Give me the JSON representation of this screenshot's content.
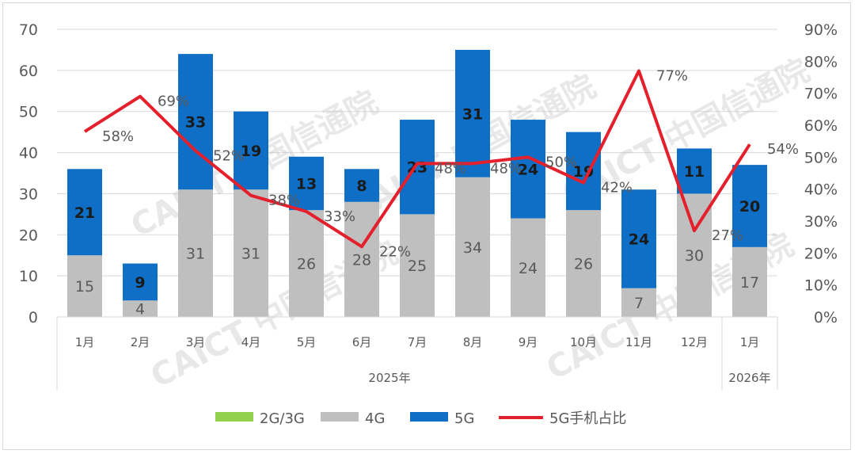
{
  "watermark": "CAICT 中国信通院",
  "chart_data": {
    "type": "bar+line",
    "categories": [
      "1月",
      "2月",
      "3月",
      "4月",
      "5月",
      "6月",
      "7月",
      "8月",
      "9月",
      "10月",
      "11月",
      "12月",
      "1月"
    ],
    "groups": [
      {
        "label": "2025年",
        "count": 12
      },
      {
        "label": "2026年",
        "count": 1
      }
    ],
    "series": [
      {
        "name": "2G/3G",
        "type": "bar",
        "color": "#92d050",
        "values": [
          0,
          0,
          0,
          0,
          0,
          0,
          0,
          0,
          0,
          0,
          0,
          0,
          0
        ]
      },
      {
        "name": "4G",
        "type": "bar",
        "color": "#bfbfbf",
        "values": [
          15,
          4,
          31,
          31,
          26,
          28,
          25,
          34,
          24,
          26,
          7,
          30,
          17
        ]
      },
      {
        "name": "5G",
        "type": "bar",
        "color": "#0f6fc6",
        "values": [
          21,
          9,
          33,
          19,
          13,
          8,
          23,
          31,
          24,
          19,
          24,
          11,
          20
        ]
      },
      {
        "name": "5G手机占比",
        "type": "line",
        "axis": "right",
        "color": "#e3202b",
        "values": [
          58,
          69,
          52,
          38,
          33,
          22,
          48,
          48,
          50,
          42,
          77,
          27,
          54
        ]
      }
    ],
    "y_left": {
      "range": [
        0,
        70
      ],
      "ticks": [
        "0",
        "10",
        "20",
        "30",
        "40",
        "50",
        "60",
        "70"
      ]
    },
    "y_right": {
      "range": [
        0,
        90
      ],
      "ticks": [
        "0%",
        "10%",
        "20%",
        "30%",
        "40%",
        "50%",
        "60%",
        "70%",
        "80%",
        "90%"
      ]
    },
    "grid": true,
    "legend": "bottom"
  }
}
